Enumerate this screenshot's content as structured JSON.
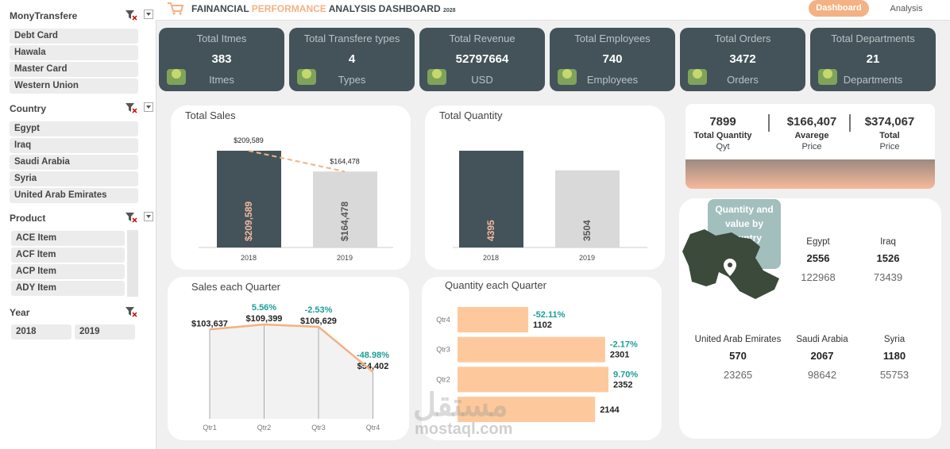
{
  "header": {
    "title": {
      "part1": "FAINANCIAL",
      "highlight": "PERFORMANCE",
      "part2": "ANALYSIS DASHBOARD",
      "year": "2028"
    },
    "tabs": [
      "Dashboard",
      "Analysis"
    ]
  },
  "slicers": [
    {
      "title": "MonyTransfere",
      "items": [
        "Debt Card",
        "Hawala",
        "Master Card",
        "Western Union"
      ]
    },
    {
      "title": "Country",
      "items": [
        "Egypt",
        "Iraq",
        "Saudi Arabia",
        "Syria",
        "United Arab Emirates"
      ]
    },
    {
      "title": "Product",
      "items": [
        "ACE Item",
        "ACF Item",
        "ACP Item",
        "ADY Item"
      ]
    },
    {
      "title": "Year",
      "items": [
        "2018",
        "2019"
      ]
    }
  ],
  "kpis": [
    {
      "title": "Total Itmes",
      "value": 383,
      "unit": "Itmes"
    },
    {
      "title": "Total Transfere types",
      "value": 4,
      "unit": "Types"
    },
    {
      "title": "Total Revenue",
      "value": 52797664,
      "unit": "USD"
    },
    {
      "title": "Total Employees",
      "value": 740,
      "unit": "Employees"
    },
    {
      "title": "Total Orders",
      "value": 3472,
      "unit": "Orders"
    },
    {
      "title": "Total Departments",
      "value": 21,
      "unit": "Departments"
    }
  ],
  "total_sales": {
    "title": "Total Sales",
    "categories": [
      "2018",
      "2019"
    ],
    "values": [
      209589,
      164478
    ],
    "value_labels": [
      "$209,589",
      "$164,478"
    ],
    "colors": [
      "#44535a",
      "#d9d9d9"
    ]
  },
  "total_quantity": {
    "title": "Total Quantity",
    "categories": [
      "2018",
      "2019"
    ],
    "values": [
      4395,
      3504
    ],
    "colors": [
      "#44535a",
      "#d9d9d9"
    ]
  },
  "sales_quarter": {
    "title": "Sales each Quarter",
    "categories": [
      "Qtr1",
      "Qtr2",
      "Qtr3",
      "Qtr4"
    ],
    "values": [
      103637,
      109399,
      106629,
      54402
    ],
    "value_labels": [
      "$103,637",
      "$109,399",
      "$106,629",
      "$54,402"
    ],
    "change_labels": [
      null,
      "5.56%",
      "-2.53%",
      "-48.98%"
    ],
    "color": "#f4b183"
  },
  "quantity_quarter": {
    "title": "Quantity each Quarter",
    "categories": [
      "Qtr4",
      "Qtr3",
      "Qtr2",
      null
    ],
    "values": [
      1102,
      2301,
      2352,
      2144
    ],
    "change_labels": [
      "-52.11%",
      "-2.17%",
      "9.70%",
      null
    ],
    "color": "#fdc99c"
  },
  "summary": [
    {
      "value": "7899",
      "label": "Total Quantity",
      "unit": "Qyt"
    },
    {
      "value": "$166,407",
      "label": "Avarege",
      "unit": "Price"
    },
    {
      "value": "$374,067",
      "label": "Total",
      "unit": "Price"
    }
  ],
  "country_card": {
    "title": "Quantity and value by country",
    "countries": [
      {
        "name": "Egypt",
        "quantity": 2556,
        "value": 122968
      },
      {
        "name": "Iraq",
        "quantity": 1526,
        "value": 73439
      },
      {
        "name": "United Arab Emirates",
        "quantity": 570,
        "value": 23265
      },
      {
        "name": "Saudi Arabia",
        "quantity": 2067,
        "value": 98642
      },
      {
        "name": "Syria",
        "quantity": 1180,
        "value": 55753
      }
    ]
  },
  "watermark": {
    "arabic": "مستقل",
    "latin": "mostaql.com"
  }
}
